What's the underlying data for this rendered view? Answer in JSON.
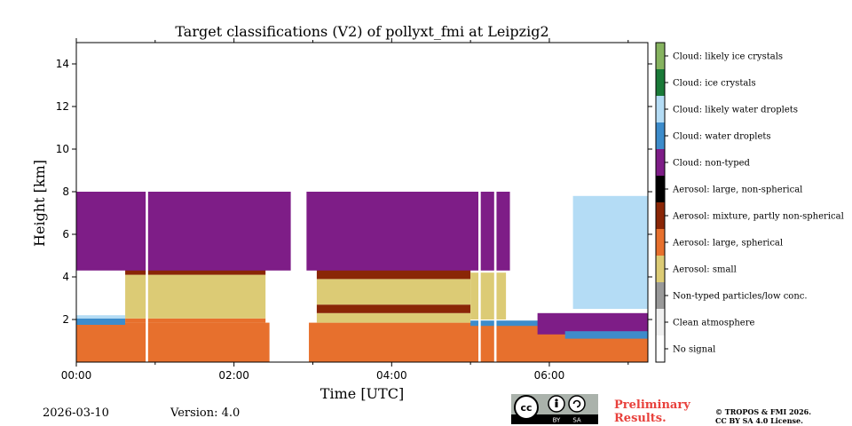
{
  "chart_data": {
    "type": "heatmap",
    "title": "Target classifications (V2) of pollyxt_fmi at Leipzig2",
    "xlabel": "Time [UTC]",
    "ylabel": "Height [km]",
    "xlim": [
      0,
      7.25
    ],
    "ylim": [
      0,
      15
    ],
    "xticks": [
      {
        "v": 0,
        "label": "00:00"
      },
      {
        "v": 2,
        "label": "02:00"
      },
      {
        "v": 4,
        "label": "04:00"
      },
      {
        "v": 6,
        "label": "06:00"
      }
    ],
    "yticks": [
      {
        "v": 2,
        "label": "2"
      },
      {
        "v": 4,
        "label": "4"
      },
      {
        "v": 6,
        "label": "6"
      },
      {
        "v": 8,
        "label": "8"
      },
      {
        "v": 10,
        "label": "10"
      },
      {
        "v": 12,
        "label": "12"
      },
      {
        "v": 14,
        "label": "14"
      }
    ],
    "classes": [
      {
        "label": "No signal",
        "color": "#ffffff"
      },
      {
        "label": "Clean atmosphere",
        "color": "#f0f0f0"
      },
      {
        "label": "Non-typed particles/low conc.",
        "color": "#999999"
      },
      {
        "label": "Aerosol: small",
        "color": "#dccb75"
      },
      {
        "label": "Aerosol: large, spherical",
        "color": "#e7702d"
      },
      {
        "label": "Aerosol: mixture, partly non-spherical",
        "color": "#8a2606"
      },
      {
        "label": "Aerosol: large, non-spherical",
        "color": "#000000"
      },
      {
        "label": "Cloud: non-typed",
        "color": "#7e1d87"
      },
      {
        "label": "Cloud: water droplets",
        "color": "#3d8ccb"
      },
      {
        "label": "Cloud: likely water droplets",
        "color": "#b4dcf5"
      },
      {
        "label": "Cloud: ice crystals",
        "color": "#1a7a38"
      },
      {
        "label": "Cloud: likely ice crystals",
        "color": "#86b35f"
      }
    ],
    "regions": [
      {
        "class": "Aerosol: large, spherical",
        "x": [
          0,
          2.45
        ],
        "y": [
          0,
          1.85
        ]
      },
      {
        "class": "Aerosol: large, spherical",
        "x": [
          2.95,
          7.25
        ],
        "y": [
          0,
          1.85
        ]
      },
      {
        "class": "Cloud: water droplets",
        "x": [
          0,
          0.62
        ],
        "y": [
          1.75,
          2.05
        ]
      },
      {
        "class": "Cloud: likely water droplets",
        "x": [
          0,
          0.62
        ],
        "y": [
          2.05,
          2.2
        ]
      },
      {
        "class": "Aerosol: large, spherical",
        "x": [
          0.62,
          2.4
        ],
        "y": [
          1.85,
          2.05
        ]
      },
      {
        "class": "Aerosol: small",
        "x": [
          0.62,
          2.4
        ],
        "y": [
          2.05,
          4.1
        ]
      },
      {
        "class": "Aerosol: mixture, partly non-spherical",
        "x": [
          0.62,
          2.4
        ],
        "y": [
          4.1,
          4.6
        ]
      },
      {
        "class": "Aerosol: large, non-spherical",
        "x": [
          1.0,
          1.6
        ],
        "y": [
          4.75,
          5.0
        ]
      },
      {
        "class": "Cloud: ice crystals",
        "x": [
          0.62,
          2.4
        ],
        "y": [
          4.6,
          5.3
        ]
      },
      {
        "class": "Aerosol: small",
        "x": [
          3.05,
          5.0
        ],
        "y": [
          1.85,
          2.3
        ]
      },
      {
        "class": "Aerosol: mixture, partly non-spherical",
        "x": [
          3.05,
          5.0
        ],
        "y": [
          2.3,
          2.7
        ]
      },
      {
        "class": "Aerosol: small",
        "x": [
          3.05,
          5.0
        ],
        "y": [
          2.7,
          3.9
        ]
      },
      {
        "class": "Aerosol: mixture, partly non-spherical",
        "x": [
          3.05,
          5.0
        ],
        "y": [
          3.9,
          4.6
        ]
      },
      {
        "class": "Aerosol: large, non-spherical",
        "x": [
          3.1,
          3.9
        ],
        "y": [
          4.6,
          4.9
        ]
      },
      {
        "class": "Cloud: ice crystals",
        "x": [
          3.05,
          5.0
        ],
        "y": [
          4.6,
          5.5
        ]
      },
      {
        "class": "Aerosol: small",
        "x": [
          5.0,
          5.45
        ],
        "y": [
          2.0,
          4.2
        ]
      },
      {
        "class": "Cloud: water droplets",
        "x": [
          5.0,
          5.9
        ],
        "y": [
          1.7,
          1.95
        ]
      },
      {
        "class": "Cloud: non-typed",
        "x": [
          5.85,
          7.25
        ],
        "y": [
          1.3,
          2.3
        ]
      },
      {
        "class": "Cloud: water droplets",
        "x": [
          6.2,
          7.25
        ],
        "y": [
          1.1,
          1.45
        ]
      },
      {
        "class": "Cloud: non-typed",
        "x": [
          0,
          5.5
        ],
        "y": [
          4.3,
          8.0
        ]
      },
      {
        "class": "Cloud: likely water droplets",
        "x": [
          6.3,
          7.25
        ],
        "y": [
          2.5,
          7.8
        ]
      }
    ],
    "gaps": [
      [
        2.72,
        2.92
      ],
      [
        0.88,
        0.91
      ],
      [
        5.1,
        5.13
      ],
      [
        5.3,
        5.33
      ]
    ]
  },
  "footer": {
    "date": "2026-03-10",
    "version": "Version: 4.0",
    "cc_badge": {
      "cc": "cc",
      "by": "BY",
      "sa": "SA"
    },
    "preliminary_line1": "Preliminary",
    "preliminary_line2": "Results.",
    "copyright_line1": "© TROPOS & FMI 2026.",
    "copyright_line2": "CC BY SA 4.0 License."
  }
}
